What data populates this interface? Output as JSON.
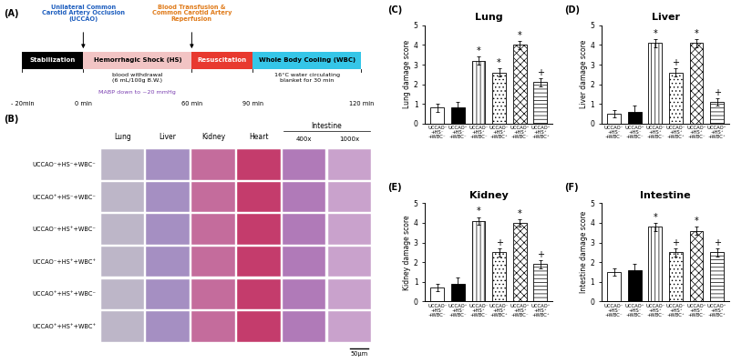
{
  "panel_A": {
    "panel": "(A)",
    "stages": [
      {
        "label": "Stabilization",
        "color": "#000000"
      },
      {
        "label": "Hemorrhagic Shock (HS)",
        "color": "#f2c4c4",
        "notes": [
          {
            "label": "blood withdrawal\n(6 mL/100g B.W.)",
            "color": "#000000"
          },
          {
            "label": "MABP down to ~20 mmHg",
            "color": "#7a3fb0"
          }
        ]
      },
      {
        "label": "Resuscitation",
        "color": "#e8392f"
      },
      {
        "label": "Whole Body Cooling (WBC)",
        "color": "#35c6e8",
        "notes": [
          {
            "label": "16°C water circulating\nblanket for 30 min",
            "color": "#000000"
          }
        ]
      }
    ],
    "times": [
      {
        "label": "- 20min"
      },
      {
        "label": "0 min",
        "event": {
          "label": "Unilateral Common\nCarotid Artery Occlusion\n(UCCAO)",
          "color": "#1f5fbf"
        }
      },
      {
        "label": "60 min",
        "event": {
          "label": "Blood Transfusion &\nCommon Carotid Artery\nReperfusion",
          "color": "#e07b1a"
        }
      },
      {
        "label": "90 min"
      },
      {
        "label": "120 min"
      }
    ]
  },
  "panel_B": {
    "panel": "(B)",
    "columns": [
      "Lung",
      "Liver",
      "Kidney",
      "Heart"
    ],
    "intestine": {
      "label": "Intestine",
      "magnifications": [
        "400x",
        "1000x"
      ]
    },
    "rows": [
      "UCCAO⁻+HS⁻+WBC⁻",
      "UCCAO⁺+HS⁻+WBC⁻",
      "UCCAO⁻+HS⁺+WBC⁻",
      "UCCAO⁻+HS⁺+WBC⁺",
      "UCCAO⁺+HS⁺+WBC⁻",
      "UCCAO⁺+HS⁺+WBC⁺"
    ],
    "scale_bar": "50μm"
  },
  "chart_data": [
    {
      "type": "bar",
      "panel": "(C)",
      "title": "Lung",
      "y_label": "Lung damage score",
      "categories": [
        "UCCAO⁻\n+HS⁻\n+WBC⁻",
        "UCCAO⁺\n+HS⁻\n+WBC⁻",
        "UCCAO⁻\n+HS⁺\n+WBC⁻",
        "UCCAO⁻\n+HS⁺\n+WBC⁺",
        "UCCAO⁺\n+HS⁺\n+WBC⁻",
        "UCCAO⁺\n+HS⁺\n+WBC⁺"
      ],
      "values": [
        0.8,
        0.8,
        3.2,
        2.6,
        4.0,
        2.1
      ],
      "errors": [
        0.2,
        0.3,
        0.2,
        0.2,
        0.2,
        0.2
      ],
      "significance": [
        null,
        null,
        "*",
        "*",
        "*",
        "+"
      ],
      "colors": [
        "#ffffff",
        "#000000",
        "#ffffff",
        "#ffffff",
        "#ffffff",
        "#ffffff"
      ],
      "ylim": [
        0,
        5
      ],
      "yticks": [
        0,
        1,
        2,
        3,
        4,
        5
      ]
    },
    {
      "type": "bar",
      "panel": "(D)",
      "title": "Liver",
      "y_label": "Liver damage score",
      "categories": [
        "UCCAO⁻\n+HS⁻\n+WBC⁻",
        "UCCAO⁺\n+HS⁻\n+WBC⁻",
        "UCCAO⁻\n+HS⁺\n+WBC⁻",
        "UCCAO⁻\n+HS⁺\n+WBC⁺",
        "UCCAO⁺\n+HS⁺\n+WBC⁻",
        "UCCAO⁺\n+HS⁺\n+WBC⁺"
      ],
      "values": [
        0.5,
        0.6,
        4.1,
        2.6,
        4.1,
        1.1
      ],
      "errors": [
        0.2,
        0.3,
        0.2,
        0.2,
        0.2,
        0.2
      ],
      "significance": [
        null,
        null,
        "*",
        "+",
        "*",
        "+"
      ],
      "colors": [
        "#ffffff",
        "#000000",
        "#ffffff",
        "#ffffff",
        "#ffffff",
        "#ffffff"
      ],
      "ylim": [
        0,
        5
      ],
      "yticks": [
        0,
        1,
        2,
        3,
        4,
        5
      ]
    },
    {
      "type": "bar",
      "panel": "(E)",
      "title": "Kidney",
      "y_label": "Kidney damage score",
      "categories": [
        "UCCAO⁻\n+HS⁻\n+WBC⁻",
        "UCCAO⁺\n+HS⁻\n+WBC⁻",
        "UCCAO⁻\n+HS⁺\n+WBC⁻",
        "UCCAO⁻\n+HS⁺\n+WBC⁺",
        "UCCAO⁺\n+HS⁺\n+WBC⁻",
        "UCCAO⁺\n+HS⁺\n+WBC⁺"
      ],
      "values": [
        0.7,
        0.9,
        4.1,
        2.5,
        4.0,
        1.9
      ],
      "errors": [
        0.2,
        0.3,
        0.2,
        0.2,
        0.2,
        0.2
      ],
      "significance": [
        null,
        null,
        "*",
        "+",
        "*",
        "+"
      ],
      "colors": [
        "#ffffff",
        "#000000",
        "#ffffff",
        "#ffffff",
        "#ffffff",
        "#ffffff"
      ],
      "ylim": [
        0,
        5
      ],
      "yticks": [
        0,
        1,
        2,
        3,
        4,
        5
      ]
    },
    {
      "type": "bar",
      "panel": "(F)",
      "title": "Intestine",
      "y_label": "Intestine damage score",
      "categories": [
        "UCCAO⁻\n+HS⁻\n+WBC⁻",
        "UCCAO⁺\n+HS⁻\n+WBC⁻",
        "UCCAO⁻\n+HS⁺\n+WBC⁻",
        "UCCAO⁻\n+HS⁺\n+WBC⁺",
        "UCCAO⁺\n+HS⁺\n+WBC⁻",
        "UCCAO⁺\n+HS⁺\n+WBC⁺"
      ],
      "values": [
        1.5,
        1.6,
        3.8,
        2.5,
        3.6,
        2.5
      ],
      "errors": [
        0.2,
        0.3,
        0.2,
        0.2,
        0.2,
        0.2
      ],
      "significance": [
        null,
        null,
        "*",
        "+",
        "*",
        "+"
      ],
      "colors": [
        "#ffffff",
        "#000000",
        "#ffffff",
        "#ffffff",
        "#ffffff",
        "#ffffff"
      ],
      "ylim": [
        0,
        5
      ],
      "yticks": [
        0,
        1,
        2,
        3,
        4,
        5
      ]
    }
  ]
}
